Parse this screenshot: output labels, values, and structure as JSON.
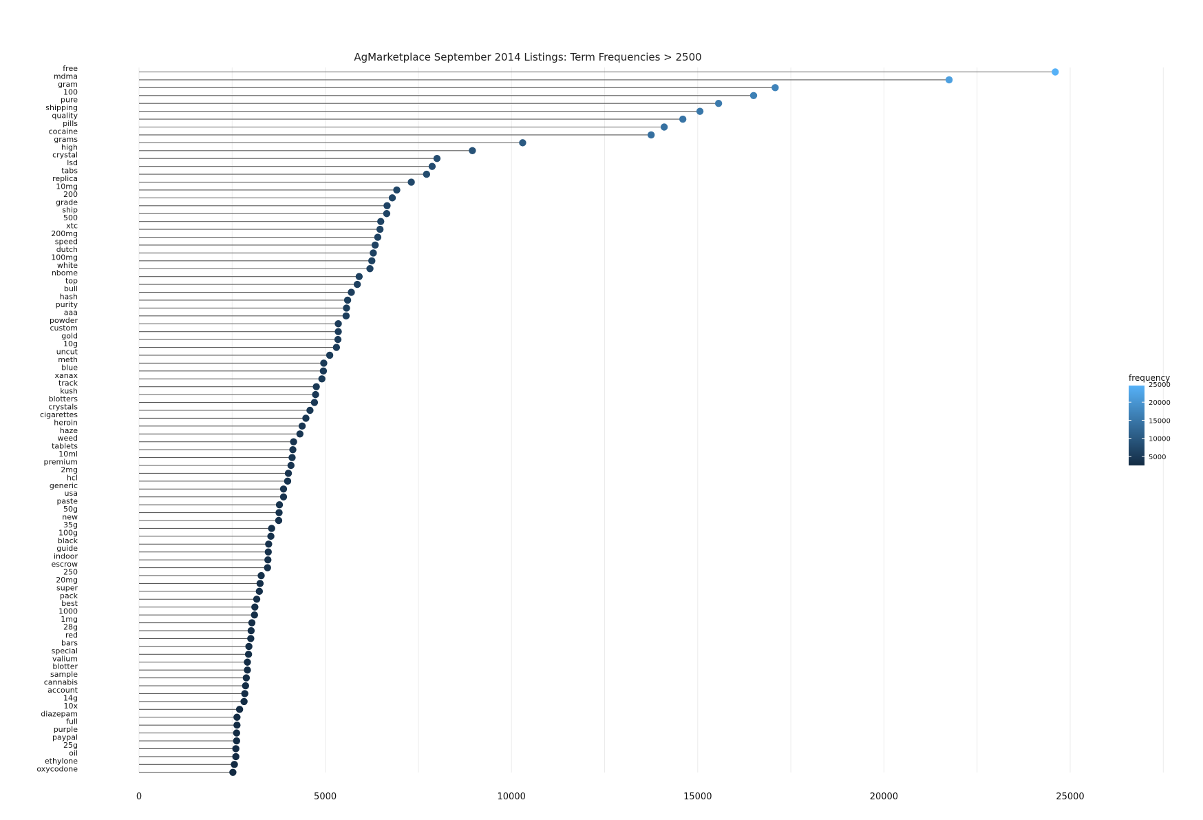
{
  "chart_data": {
    "type": "lollipop",
    "title": "AgMarketplace September 2014 Listings: Term Frequencies > 2500",
    "xlabel": "",
    "ylabel": "",
    "xlim": [
      0,
      27500
    ],
    "xticks": [
      0,
      5000,
      10000,
      15000,
      20000,
      25000
    ],
    "grid": true,
    "legend": {
      "title": "frequency",
      "position": "right",
      "breaks": [
        25000,
        20000,
        15000,
        10000,
        5000
      ],
      "color_low": "#132B43",
      "color_high": "#56B1F7"
    },
    "categories": [
      "free",
      "mdma",
      "gram",
      "100",
      "pure",
      "shipping",
      "quality",
      "pills",
      "cocaine",
      "grams",
      "high",
      "crystal",
      "lsd",
      "tabs",
      "replica",
      "10mg",
      "200",
      "grade",
      "ship",
      "500",
      "xtc",
      "200mg",
      "speed",
      "dutch",
      "100mg",
      "white",
      "nbome",
      "top",
      "bull",
      "hash",
      "purity",
      "aaa",
      "powder",
      "custom",
      "gold",
      "10g",
      "uncut",
      "meth",
      "blue",
      "xanax",
      "track",
      "kush",
      "blotters",
      "crystals",
      "cigarettes",
      "heroin",
      "haze",
      "weed",
      "tablets",
      "10ml",
      "premium",
      "2mg",
      "hcl",
      "generic",
      "usa",
      "paste",
      "50g",
      "new",
      "35g",
      "100g",
      "black",
      "guide",
      "indoor",
      "escrow",
      "250",
      "20mg",
      "super",
      "pack",
      "best",
      "1000",
      "1mg",
      "28g",
      "red",
      "bars",
      "special",
      "valium",
      "blotter",
      "sample",
      "cannabis",
      "account",
      "14g",
      "10x",
      "diazepam",
      "full",
      "purple",
      "paypal",
      "25g",
      "oil",
      "ethylone",
      "oxycodone"
    ],
    "values": [
      24600,
      21750,
      17080,
      16500,
      15560,
      15060,
      14600,
      14100,
      13750,
      10300,
      8950,
      8000,
      7870,
      7720,
      7310,
      6920,
      6800,
      6660,
      6650,
      6490,
      6470,
      6410,
      6340,
      6290,
      6250,
      6200,
      5910,
      5860,
      5700,
      5600,
      5570,
      5560,
      5350,
      5350,
      5340,
      5300,
      5120,
      4960,
      4950,
      4910,
      4760,
      4740,
      4710,
      4590,
      4480,
      4380,
      4320,
      4150,
      4130,
      4110,
      4080,
      4010,
      3990,
      3880,
      3880,
      3770,
      3760,
      3750,
      3560,
      3540,
      3480,
      3470,
      3460,
      3450,
      3280,
      3250,
      3230,
      3160,
      3110,
      3100,
      3030,
      3010,
      3000,
      2950,
      2940,
      2910,
      2910,
      2880,
      2860,
      2840,
      2820,
      2700,
      2630,
      2630,
      2620,
      2620,
      2600,
      2600,
      2560,
      2520
    ]
  }
}
